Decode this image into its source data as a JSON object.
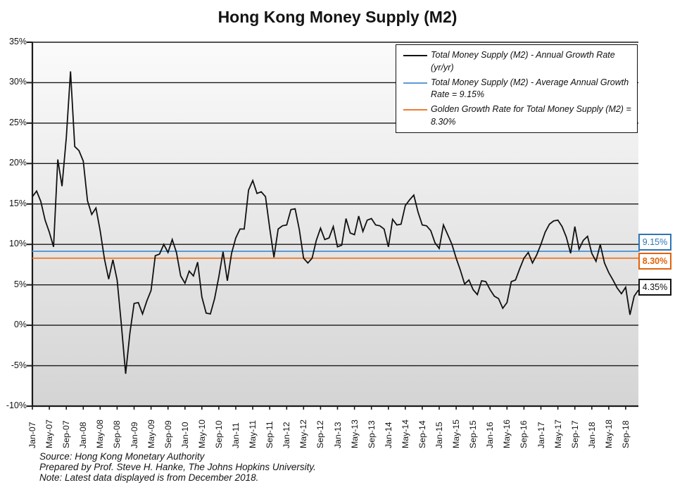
{
  "page": {
    "footer": [
      "Source: Hong Kong Monetary Authority",
      "Prepared by Prof. Steve H. Hanke, The Johns Hopkins University.",
      "Note: Latest data displayed is from December 2018."
    ]
  },
  "chart_data": {
    "type": "line",
    "title": "Hong Kong Money Supply (M2)",
    "xlabel": "",
    "ylabel": "",
    "ylim": [
      -10,
      35
    ],
    "y_tick_step": 5,
    "y_tick_labels": [
      "35%",
      "30%",
      "25%",
      "20%",
      "15%",
      "10%",
      "5%",
      "0%",
      "-5%",
      "-10%"
    ],
    "x_start": "Jan-2007",
    "x_end": "Dec-2018",
    "x_tick_every_months": 4,
    "x_tick_labels": [
      "Jan-07",
      "May-07",
      "Sep-07",
      "Jan-08",
      "May-08",
      "Sep-08",
      "Jan-09",
      "May-09",
      "Sep-09",
      "Jan-10",
      "May-10",
      "Sep-10",
      "Jan-11",
      "May-11",
      "Sep-11",
      "Jan-12",
      "May-12",
      "Sep-12",
      "Jan-13",
      "May-13",
      "Sep-13",
      "Jan-14",
      "May-14",
      "Sep-14",
      "Jan-15",
      "May-15",
      "Sep-15",
      "Jan-16",
      "May-16",
      "Sep-16",
      "Jan-17",
      "May-17",
      "Sep-17",
      "Jan-18",
      "May-18",
      "Sep-18"
    ],
    "grid": "horizontal",
    "legend_position": "top-right",
    "plot_bg_gradient": [
      "#fbfbfb",
      "#d4d4d4"
    ],
    "series": [
      {
        "name": "Total Money Supply (M2) - Annual Growth Rate (yr/yr)",
        "type": "line",
        "color": "#111111",
        "values": [
          15.9,
          16.6,
          15.3,
          13.0,
          11.5,
          9.7,
          20.5,
          17.2,
          23.2,
          31.4,
          22.1,
          21.6,
          20.3,
          15.4,
          13.7,
          14.5,
          11.7,
          8.2,
          5.7,
          8.1,
          5.6,
          0.1,
          -6.0,
          -1.0,
          2.7,
          2.8,
          1.4,
          3.0,
          4.3,
          8.6,
          8.8,
          10.0,
          9.0,
          10.6,
          9.0,
          6.1,
          5.2,
          6.7,
          6.1,
          7.8,
          3.5,
          1.5,
          1.4,
          3.3,
          6.0,
          9.1,
          5.5,
          8.9,
          10.8,
          11.9,
          11.9,
          16.7,
          17.9,
          16.3,
          16.5,
          15.9,
          12.0,
          8.4,
          11.9,
          12.3,
          12.4,
          14.3,
          14.4,
          11.8,
          8.3,
          7.7,
          8.3,
          10.5,
          12.0,
          10.6,
          10.8,
          12.2,
          9.7,
          9.9,
          13.2,
          11.4,
          11.2,
          13.5,
          11.6,
          13.0,
          13.2,
          12.4,
          12.3,
          11.9,
          9.7,
          13.1,
          12.4,
          12.5,
          14.8,
          15.5,
          16.1,
          14.0,
          12.4,
          12.3,
          11.7,
          10.2,
          9.5,
          12.4,
          11.2,
          10.0,
          8.3,
          6.8,
          5.1,
          5.6,
          4.4,
          3.8,
          5.5,
          5.4,
          4.4,
          3.6,
          3.3,
          2.1,
          2.8,
          5.4,
          5.6,
          7.0,
          8.3,
          9.0,
          7.7,
          8.7,
          10.0,
          11.5,
          12.5,
          12.9,
          13.0,
          12.2,
          10.9,
          8.9,
          12.2,
          9.4,
          10.5,
          11.0,
          8.9,
          7.9,
          10.0,
          7.7,
          6.5,
          5.6,
          4.6,
          3.9,
          4.7,
          1.3,
          3.6,
          4.35
        ]
      },
      {
        "name": "Total Money Supply (M2) - Average Annual Growth Rate = 9.15%",
        "type": "hline",
        "color": "#5b9bd5",
        "value": 9.15
      },
      {
        "name": "Golden Growth Rate for Total Money Supply (M2) = 8.30%",
        "type": "hline",
        "color": "#ed7d31",
        "value": 8.3
      }
    ],
    "end_labels": [
      {
        "text": "9.15%",
        "color": "#2e75b6",
        "bold": false,
        "value": 9.15
      },
      {
        "text": "8.30%",
        "color": "#e36209",
        "bold": true,
        "value": 8.3
      },
      {
        "text": "4.35%",
        "color": "#111111",
        "bold": false,
        "value": 4.35
      }
    ]
  }
}
